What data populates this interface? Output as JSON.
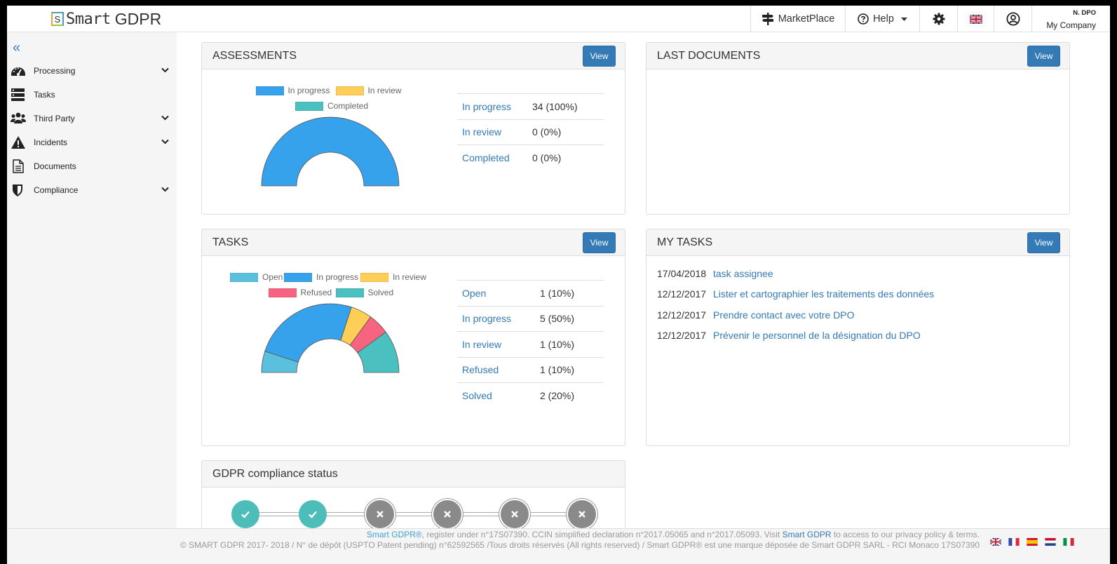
{
  "header": {
    "brand_prefix": "S",
    "brand_mono": "Smart",
    "brand_name": "GDPR",
    "marketplace": "MarketPlace",
    "help": "Help",
    "account_name": "N. DPO",
    "account_company": "My Company"
  },
  "sidebar": {
    "items": [
      {
        "label": "Processing",
        "icon": "dashboard-gauge-icon",
        "has_submenu": true
      },
      {
        "label": "Tasks",
        "icon": "tasks-list-icon",
        "has_submenu": false
      },
      {
        "label": "Third Party",
        "icon": "users-group-icon",
        "has_submenu": true
      },
      {
        "label": "Incidents",
        "icon": "warning-triangle-icon",
        "has_submenu": true
      },
      {
        "label": "Documents",
        "icon": "document-icon",
        "has_submenu": false
      },
      {
        "label": "Compliance",
        "icon": "shield-icon",
        "has_submenu": true
      }
    ]
  },
  "assessments": {
    "title": "ASSESSMENTS",
    "view_label": "View",
    "rows": [
      {
        "label": "In progress",
        "value": "34 (100%)"
      },
      {
        "label": "In review",
        "value": "0 (0%)"
      },
      {
        "label": "Completed",
        "value": "0 (0%)"
      }
    ]
  },
  "last_documents": {
    "title": "LAST DOCUMENTS",
    "view_label": "View"
  },
  "tasks": {
    "title": "TASKS",
    "view_label": "View",
    "rows": [
      {
        "label": "Open",
        "value": "1 (10%)"
      },
      {
        "label": "In progress",
        "value": "5 (50%)"
      },
      {
        "label": "In review",
        "value": "1 (10%)"
      },
      {
        "label": "Refused",
        "value": "1 (10%)"
      },
      {
        "label": "Solved",
        "value": "2 (20%)"
      }
    ]
  },
  "my_tasks": {
    "title": "MY TASKS",
    "view_label": "View",
    "items": [
      {
        "date": "17/04/2018",
        "label": "task assignee"
      },
      {
        "date": "12/12/2017",
        "label": "Lister et cartographier les traitements des données"
      },
      {
        "date": "12/12/2017",
        "label": "Prendre contact avec votre DPO"
      },
      {
        "date": "12/12/2017",
        "label": "Prévenir le personnel de la désignation du DPO"
      }
    ]
  },
  "compliance": {
    "title": "GDPR compliance status",
    "steps": [
      "done",
      "done",
      "not-done",
      "not-done",
      "not-done",
      "not-done"
    ]
  },
  "chart_data": [
    {
      "type": "pie",
      "variant": "half-doughnut",
      "categories": [
        "In progress",
        "In review",
        "Completed"
      ],
      "values": [
        34,
        0,
        0
      ],
      "colors": [
        "#36a2eb",
        "#ffce56",
        "#4bc0c0"
      ],
      "legend": "top"
    },
    {
      "type": "pie",
      "variant": "half-doughnut",
      "categories": [
        "Open",
        "In progress",
        "In review",
        "Refused",
        "Solved"
      ],
      "values": [
        1,
        5,
        1,
        1,
        2
      ],
      "colors": [
        "#5bc0de",
        "#36a2eb",
        "#ffce56",
        "#f7647f",
        "#4bc0c0"
      ],
      "legend": "top"
    }
  ],
  "footer": {
    "brand_link": "Smart GDPR®",
    "line1_mid": ", register under n°17S07390. CCIN simplified declaration n°2017.05065 and n°2017.05093. Visit ",
    "site_link": "Smart GDPR",
    "line1_end": " to access to our privacy policy & terms.",
    "line2": "© SMART GDPR 2017- 2018 / N° de dépôt (USPTO Patent pending) n°62592565 /Tous droits réservés (All rights reserved) / Smart GDPR® est une marque déposée de Smart GDPR SARL - RCI Monaco 17S07390",
    "languages": [
      "en",
      "fr",
      "es",
      "nl",
      "it"
    ]
  }
}
